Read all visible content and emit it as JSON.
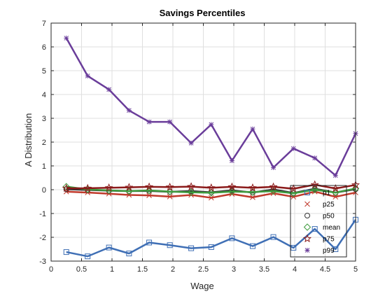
{
  "chart_data": {
    "type": "line",
    "title": "Savings Percentiles",
    "xlabel": "Wage",
    "ylabel": "A Distribution",
    "xlim": [
      0,
      5
    ],
    "ylim": [
      -3,
      7
    ],
    "xticks": [
      0,
      0.5,
      1,
      1.5,
      2,
      2.5,
      3,
      3.5,
      4,
      4.5,
      5
    ],
    "xtick_labels": [
      "0",
      "0.5",
      "1",
      "1.5",
      "2",
      "2.5",
      "3",
      "3.5",
      "4",
      "4.5",
      "5"
    ],
    "yticks": [
      -3,
      -2,
      -1,
      0,
      1,
      2,
      3,
      4,
      5,
      6,
      7
    ],
    "ytick_labels": [
      "-3",
      "-2",
      "-1",
      "0",
      "1",
      "2",
      "3",
      "4",
      "5",
      "6",
      "7"
    ],
    "grid": true,
    "legend_position": "bottom-right",
    "x": [
      0.25,
      0.6,
      0.95,
      1.28,
      1.61,
      1.95,
      2.3,
      2.63,
      2.97,
      3.31,
      3.65,
      3.98,
      4.33,
      4.67,
      5.0
    ],
    "series": [
      {
        "name": "p1",
        "color": "#3F6FB5",
        "marker": "square",
        "values": [
          -2.62,
          -2.8,
          -2.43,
          -2.68,
          -2.22,
          -2.33,
          -2.46,
          -2.41,
          -2.04,
          -2.37,
          -1.99,
          -2.44,
          -1.65,
          -2.5,
          -1.26
        ]
      },
      {
        "name": "p25",
        "color": "#C0392B",
        "marker": "x",
        "values": [
          -0.08,
          -0.12,
          -0.17,
          -0.22,
          -0.24,
          -0.29,
          -0.22,
          -0.34,
          -0.18,
          -0.32,
          -0.15,
          -0.3,
          -0.08,
          -0.3,
          -0.12
        ]
      },
      {
        "name": "p50",
        "color": "#333333",
        "marker": "circle",
        "values": [
          0.02,
          -0.01,
          -0.04,
          -0.06,
          -0.05,
          -0.09,
          -0.06,
          -0.11,
          -0.03,
          -0.12,
          0.01,
          -0.14,
          0.04,
          -0.12,
          0.02
        ]
      },
      {
        "name": "mean",
        "color": "#3E9B3E",
        "marker": "diamond",
        "values": [
          0.13,
          0.01,
          -0.03,
          -0.06,
          -0.03,
          -0.08,
          -0.11,
          -0.13,
          -0.08,
          -0.1,
          -0.06,
          -0.15,
          0.0,
          -0.12,
          0.05
        ]
      },
      {
        "name": "p75",
        "color": "#8B1A1A",
        "marker": "star",
        "values": [
          0.06,
          0.06,
          0.08,
          0.1,
          0.12,
          0.11,
          0.13,
          0.08,
          0.12,
          0.08,
          0.12,
          0.04,
          0.21,
          0.05,
          0.2
        ]
      },
      {
        "name": "p99",
        "color": "#6A3D9A",
        "marker": "asterisk",
        "values": [
          6.37,
          4.78,
          4.21,
          3.33,
          2.85,
          2.85,
          1.96,
          2.74,
          1.22,
          2.55,
          0.93,
          1.73,
          1.33,
          0.6,
          2.36
        ]
      }
    ]
  }
}
